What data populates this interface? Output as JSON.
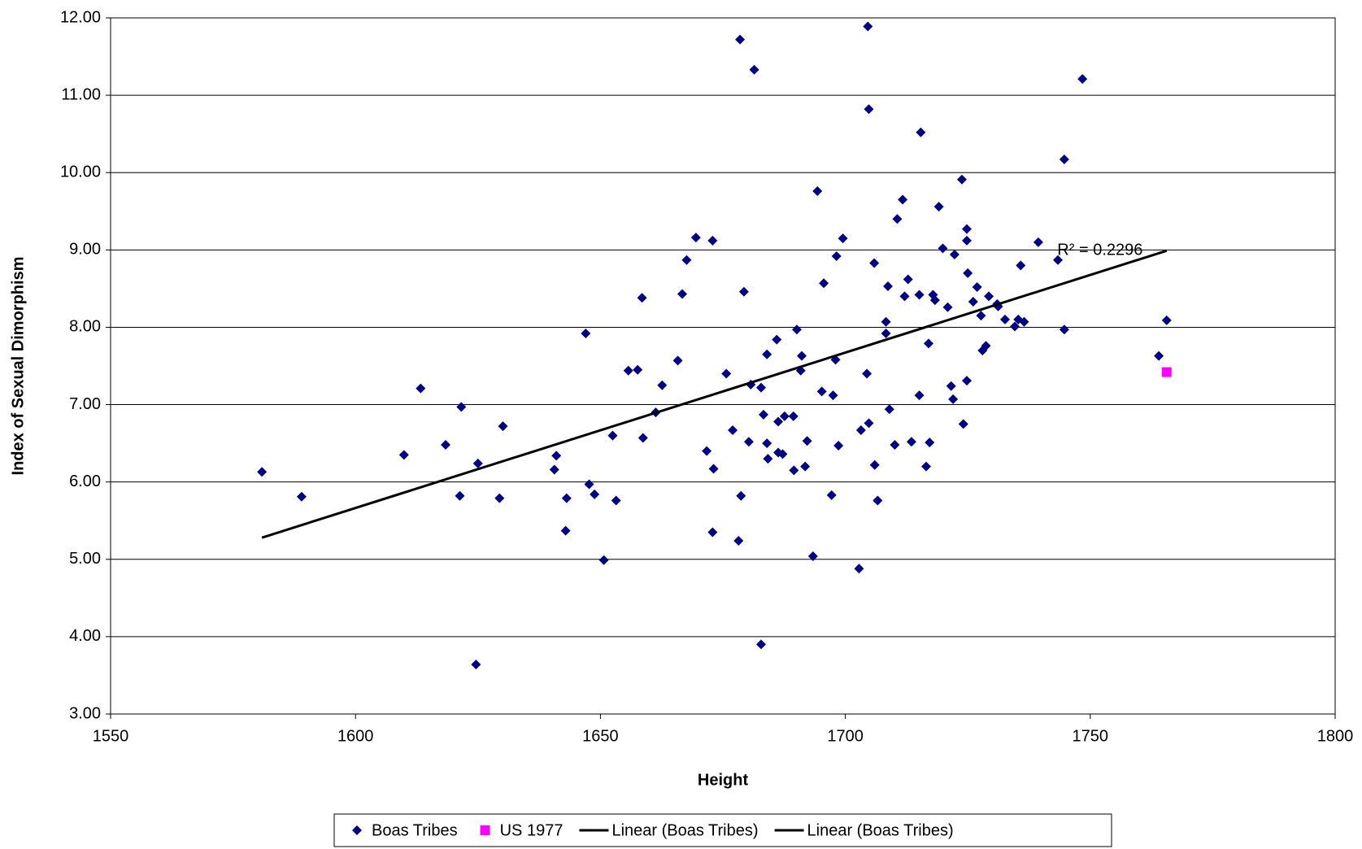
{
  "chart_data": {
    "type": "scatter",
    "x_label": "Height",
    "y_label": "Index of Sexual Dimorphism",
    "xlim": [
      1550,
      1800
    ],
    "xticks": [
      1550,
      1600,
      1650,
      1700,
      1750,
      1800
    ],
    "ylim": [
      3,
      12
    ],
    "yticks": [
      {
        "value": 3,
        "label": "3.00"
      },
      {
        "value": 4,
        "label": "4.00"
      },
      {
        "value": 5,
        "label": "5.00"
      },
      {
        "value": 6,
        "label": "6.00"
      },
      {
        "value": 7,
        "label": "7.00"
      },
      {
        "value": 8,
        "label": "8.00"
      },
      {
        "value": 9,
        "label": "9.00"
      },
      {
        "value": 10,
        "label": "10.00"
      },
      {
        "value": 11,
        "label": "11.00"
      },
      {
        "value": 12,
        "label": "12.00"
      }
    ],
    "grid": true,
    "legend": "bottom",
    "series": [
      {
        "name": "Boas Tribes",
        "color": "#000080",
        "marker": "diamond",
        "x": [
          1580.9,
          1589.0,
          1613.3,
          1609.9,
          1618.4,
          1621.6,
          1621.3,
          1625.0,
          1624.6,
          1630.1,
          1629.4,
          1640.6,
          1641.0,
          1643.1,
          1642.9,
          1647.0,
          1647.7,
          1648.8,
          1650.7,
          1652.5,
          1653.2,
          1655.7,
          1657.6,
          1658.5,
          1658.7,
          1661.3,
          1662.6,
          1665.8,
          1666.7,
          1667.6,
          1669.5,
          1672.9,
          1671.7,
          1673.1,
          1672.9,
          1675.7,
          1677.0,
          1678.5,
          1679.3,
          1678.7,
          1678.2,
          1680.3,
          1680.7,
          1681.4,
          1682.8,
          1682.8,
          1683.3,
          1684.0,
          1684.0,
          1684.2,
          1686.0,
          1686.3,
          1686.3,
          1687.2,
          1687.6,
          1689.4,
          1689.5,
          1690.1,
          1690.9,
          1691.1,
          1691.8,
          1692.2,
          1693.4,
          1694.3,
          1695.2,
          1695.6,
          1697.2,
          1697.5,
          1698.0,
          1698.2,
          1698.6,
          1699.5,
          1702.8,
          1703.2,
          1704.4,
          1704.6,
          1704.8,
          1704.8,
          1705.9,
          1706.0,
          1706.6,
          1708.3,
          1708.3,
          1708.7,
          1709.0,
          1710.1,
          1710.6,
          1711.7,
          1712.1,
          1712.8,
          1713.5,
          1715.1,
          1715.1,
          1715.4,
          1716.5,
          1717.0,
          1717.2,
          1717.9,
          1718.3,
          1719.1,
          1719.9,
          1720.9,
          1721.6,
          1722.0,
          1722.3,
          1723.8,
          1724.1,
          1724.8,
          1724.8,
          1725.0,
          1724.8,
          1726.1,
          1726.9,
          1727.7,
          1728.0,
          1728.7,
          1729.3,
          1731.0,
          1731.2,
          1732.6,
          1734.6,
          1735.3,
          1735.8,
          1736.5,
          1739.4,
          1743.4,
          1744.7,
          1744.7,
          1748.4,
          1764.0,
          1765.6
        ],
        "values": [
          6.13,
          5.81,
          7.21,
          6.35,
          6.48,
          6.97,
          5.82,
          6.24,
          3.64,
          6.72,
          5.79,
          6.16,
          6.34,
          5.79,
          5.37,
          7.92,
          5.97,
          5.84,
          4.99,
          6.6,
          5.76,
          7.44,
          7.45,
          8.38,
          6.57,
          6.9,
          7.25,
          7.57,
          8.43,
          8.87,
          9.16,
          9.12,
          6.4,
          6.17,
          5.35,
          7.4,
          6.67,
          11.72,
          8.46,
          5.82,
          5.24,
          6.52,
          7.26,
          11.33,
          7.22,
          3.9,
          6.87,
          7.65,
          6.5,
          6.3,
          7.84,
          6.78,
          6.38,
          6.36,
          6.85,
          6.85,
          6.15,
          7.97,
          7.44,
          7.63,
          6.2,
          6.53,
          5.04,
          9.76,
          7.17,
          8.57,
          5.83,
          7.12,
          7.58,
          8.92,
          6.47,
          9.15,
          4.88,
          6.67,
          7.4,
          11.89,
          10.82,
          6.76,
          8.83,
          6.22,
          5.76,
          8.07,
          7.92,
          8.53,
          6.94,
          6.48,
          9.4,
          9.65,
          8.4,
          8.62,
          6.52,
          8.42,
          7.12,
          10.52,
          6.2,
          7.79,
          6.51,
          8.42,
          8.35,
          9.56,
          9.02,
          8.26,
          7.24,
          7.07,
          8.94,
          9.91,
          6.75,
          9.27,
          9.12,
          8.7,
          7.31,
          8.33,
          8.52,
          8.15,
          7.7,
          7.76,
          8.4,
          8.3,
          8.27,
          8.1,
          8.01,
          8.1,
          8.8,
          8.07,
          9.1,
          8.87,
          10.17,
          7.97,
          11.21,
          7.63,
          8.09
        ]
      },
      {
        "name": "US 1977",
        "color": "#ff00ff",
        "marker": "square",
        "x": [
          1765.6
        ],
        "values": [
          7.42
        ]
      }
    ],
    "trendlines": [
      {
        "name": "Linear (Boas Tribes)",
        "color": "#000000",
        "x": [
          1580.9,
          1765.6
        ],
        "values": [
          5.28,
          8.99
        ]
      },
      {
        "name": "Linear (Boas Tribes)",
        "color": "#000000"
      }
    ],
    "annotation": {
      "text": "R² = 0.2296",
      "x": 1752,
      "y": 8.99
    }
  }
}
